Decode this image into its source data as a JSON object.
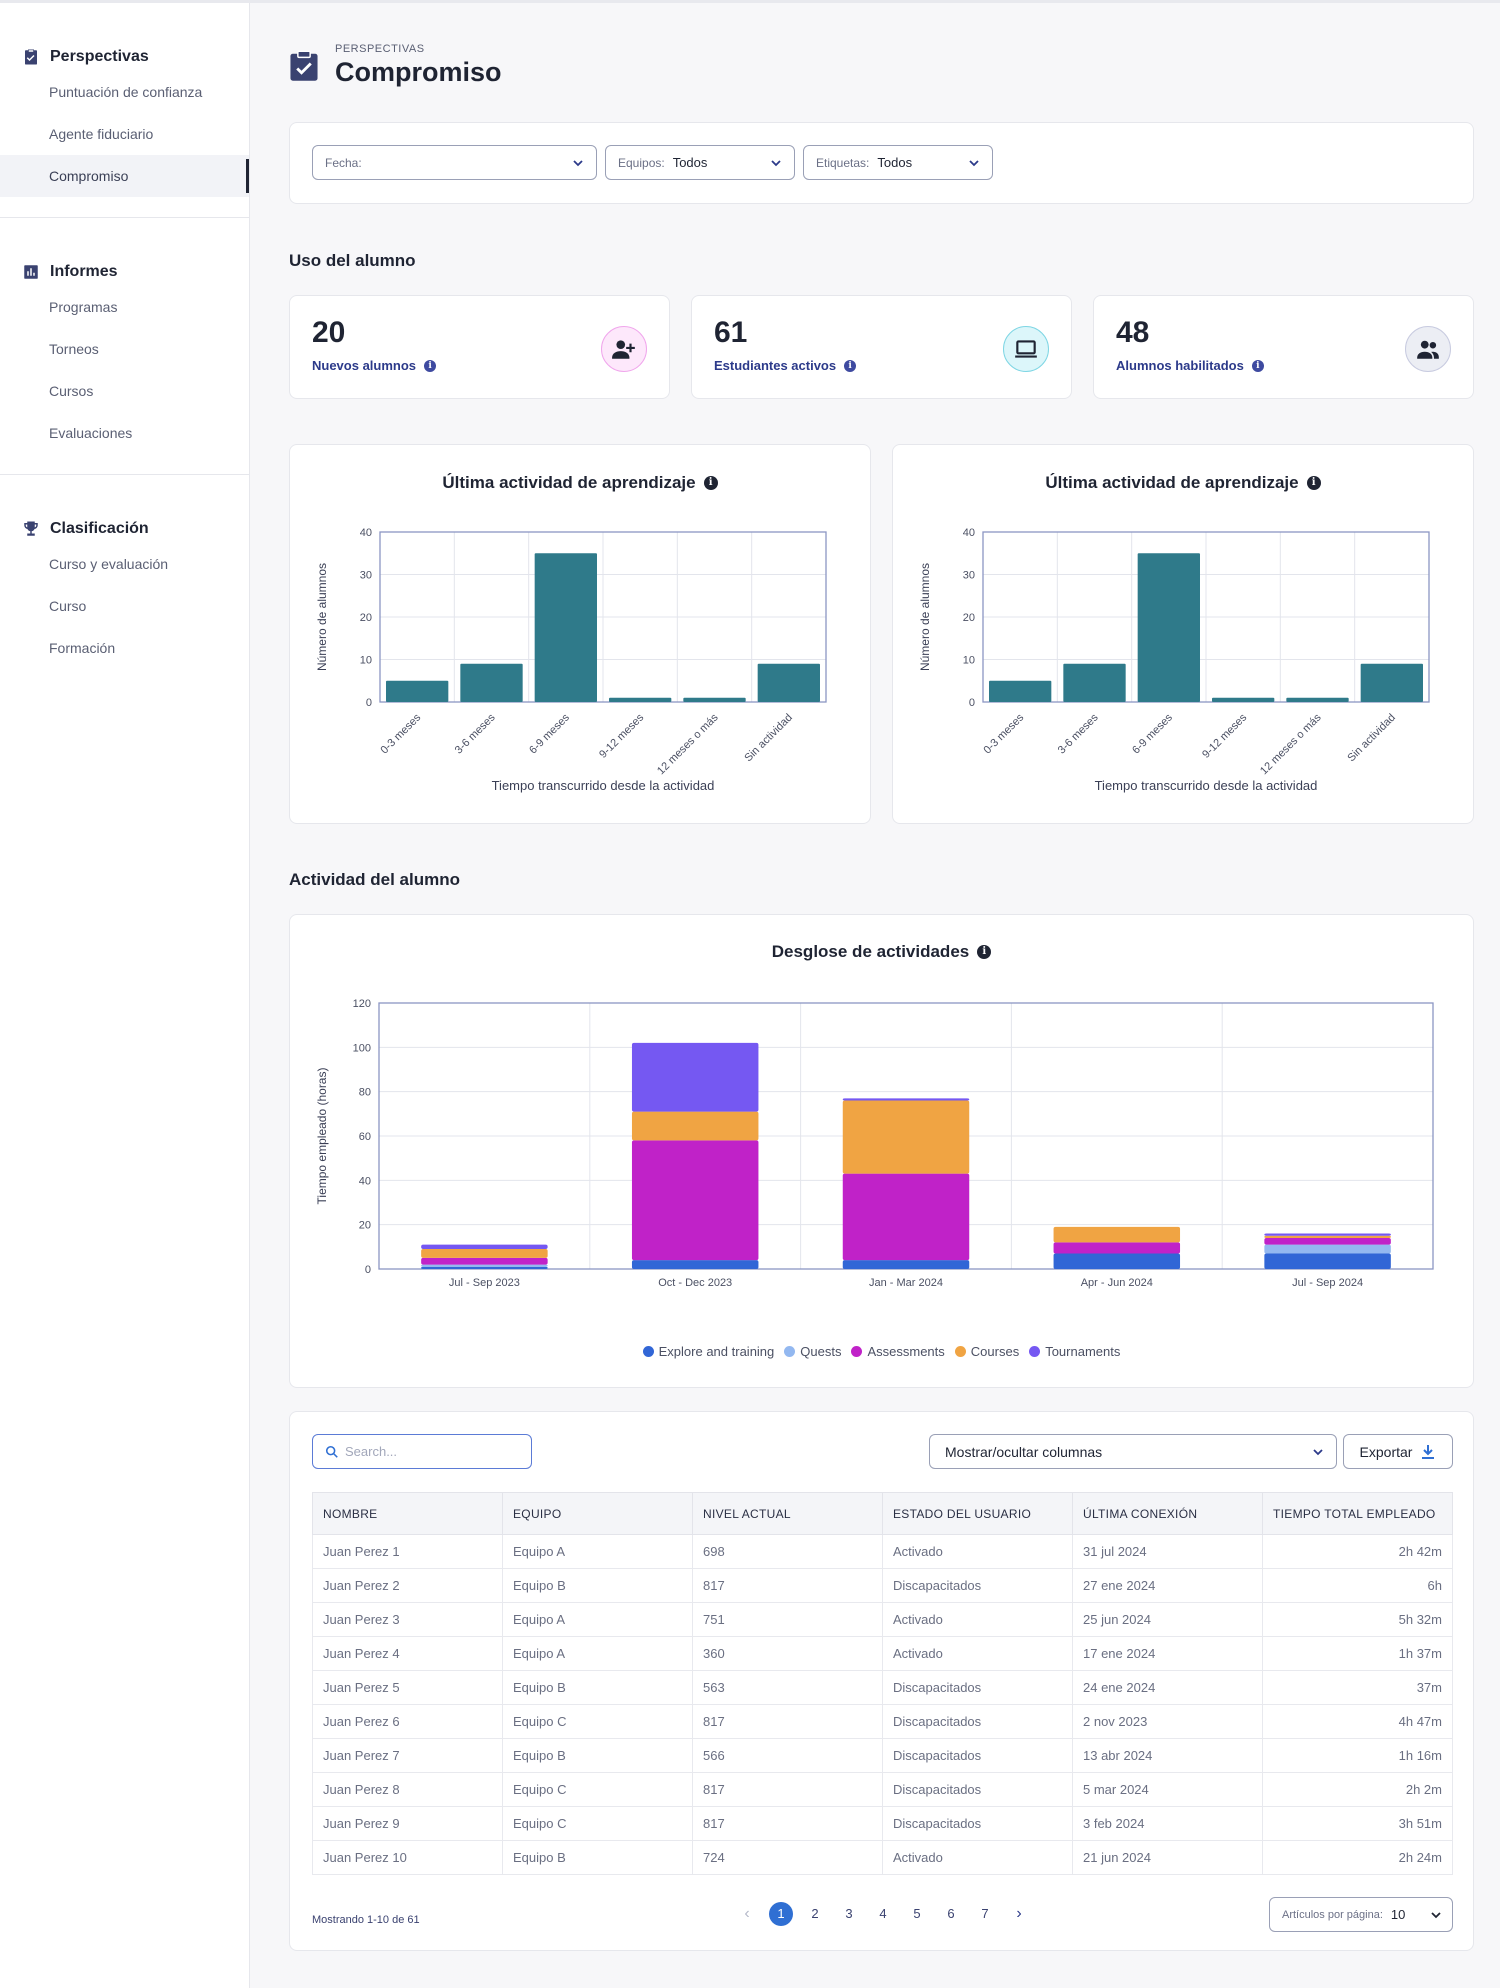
{
  "sidebar": {
    "groups": [
      {
        "title": "Perspectivas",
        "icon": "clipboard-check-icon",
        "items": [
          "Puntuación de confianza",
          "Agente fiduciario",
          "Compromiso"
        ],
        "active": 2
      },
      {
        "title": "Informes",
        "icon": "bar-chart-icon",
        "items": [
          "Programas",
          "Torneos",
          "Cursos",
          "Evaluaciones"
        ]
      },
      {
        "title": "Clasificación",
        "icon": "trophy-icon",
        "items": [
          "Curso y evaluación",
          "Curso",
          "Formación"
        ]
      }
    ]
  },
  "header": {
    "eyebrow": "PERSPECTIVAS",
    "title": "Compromiso"
  },
  "filters": [
    {
      "label": "Fecha:",
      "value": ""
    },
    {
      "label": "Equipos:",
      "value": "Todos"
    },
    {
      "label": "Etiquetas:",
      "value": "Todos"
    }
  ],
  "usage": {
    "title": "Uso del alumno",
    "kpis": [
      {
        "value": "20",
        "label": "Nuevos alumnos",
        "icon": "user-plus-icon",
        "color": "#c026d3",
        "bg": "#fde8fb"
      },
      {
        "value": "61",
        "label": "Estudiantes activos",
        "icon": "laptop-icon",
        "color": "#0e7490",
        "bg": "#dcf6fa"
      },
      {
        "value": "48",
        "label": "Alumnos habilitados",
        "icon": "users-icon",
        "color": "#3a3f55",
        "bg": "#eceef4"
      }
    ]
  },
  "last_activity_charts": [
    {
      "title": "Última actividad de aprendizaje"
    },
    {
      "title": "Última actividad de aprendizaje"
    }
  ],
  "activity": {
    "title": "Actividad del alumno",
    "chart_title": "Desglose de actividades"
  },
  "chart_data": [
    {
      "type": "bar",
      "title": "Última actividad de aprendizaje",
      "categories": [
        "0-3 meses",
        "3-6 meses",
        "6-9 meses",
        "9-12 meses",
        "12 meses o más",
        "Sin actividad"
      ],
      "values": [
        5,
        9,
        35,
        1,
        1,
        9
      ],
      "xlabel": "Tiempo transcurrido desde la actividad",
      "ylabel": "Número de alumnos",
      "ylim": [
        0,
        40
      ],
      "yticks": [
        0,
        10,
        20,
        30,
        40
      ],
      "color": "#2f7a8a",
      "grid": true
    },
    {
      "type": "bar",
      "title": "Última actividad de aprendizaje",
      "categories": [
        "0-3 meses",
        "3-6 meses",
        "6-9 meses",
        "9-12 meses",
        "12 meses o más",
        "Sin actividad"
      ],
      "values": [
        5,
        9,
        35,
        1,
        1,
        9
      ],
      "xlabel": "Tiempo transcurrido desde la actividad",
      "ylabel": "Número de alumnos",
      "ylim": [
        0,
        40
      ],
      "yticks": [
        0,
        10,
        20,
        30,
        40
      ],
      "color": "#2f7a8a",
      "grid": true
    },
    {
      "type": "bar",
      "stacked": true,
      "title": "Desglose de actividades",
      "categories": [
        "Jul - Sep 2023",
        "Oct - Dec 2023",
        "Jan - Mar 2024",
        "Apr - Jun 2024",
        "Jul - Sep 2024"
      ],
      "series": [
        {
          "name": "Explore and training",
          "color": "#3166d6",
          "values": [
            1,
            4,
            4,
            7,
            7
          ]
        },
        {
          "name": "Quests",
          "color": "#93b8f0",
          "values": [
            1,
            0,
            0,
            0,
            4
          ]
        },
        {
          "name": "Assessments",
          "color": "#c022c8",
          "values": [
            3,
            54,
            39,
            5,
            3
          ]
        },
        {
          "name": "Courses",
          "color": "#f0a443",
          "values": [
            4,
            13,
            33,
            7,
            1
          ]
        },
        {
          "name": "Tournaments",
          "color": "#7558f2",
          "values": [
            2,
            31,
            1,
            0,
            1
          ]
        }
      ],
      "ylabel": "Tiempo empleado (horas)",
      "ylim": [
        0,
        120
      ],
      "yticks": [
        0,
        20,
        40,
        60,
        80,
        100,
        120
      ],
      "legend": "bottom",
      "grid": true
    }
  ],
  "table": {
    "search_placeholder": "Search...",
    "columns_toggle": "Mostrar/ocultar columnas",
    "export_label": "Exportar",
    "headers": [
      "NOMBRE",
      "EQUIPO",
      "NIVEL ACTUAL",
      "ESTADO DEL USUARIO",
      "ÚLTIMA CONEXIÓN",
      "TIEMPO TOTAL EMPLEADO"
    ],
    "rows": [
      [
        "Juan Perez 1",
        "Equipo A",
        "698",
        "Activado",
        "31 jul 2024",
        "2h 42m"
      ],
      [
        "Juan Perez 2",
        "Equipo B",
        "817",
        "Discapacitados",
        "27 ene 2024",
        "6h"
      ],
      [
        "Juan Perez 3",
        "Equipo A",
        "751",
        "Activado",
        "25 jun 2024",
        "5h 32m"
      ],
      [
        "Juan Perez 4",
        "Equipo A",
        "360",
        "Activado",
        "17 ene 2024",
        "1h 37m"
      ],
      [
        "Juan Perez 5",
        "Equipo B",
        "563",
        "Discapacitados",
        "24 ene 2024",
        "37m"
      ],
      [
        "Juan Perez 6",
        "Equipo C",
        "817",
        "Discapacitados",
        "2 nov 2023",
        "4h 47m"
      ],
      [
        "Juan Perez 7",
        "Equipo B",
        "566",
        "Discapacitados",
        "13 abr 2024",
        "1h 16m"
      ],
      [
        "Juan Perez 8",
        "Equipo C",
        "817",
        "Discapacitados",
        "5 mar 2024",
        "2h 2m"
      ],
      [
        "Juan Perez 9",
        "Equipo C",
        "817",
        "Discapacitados",
        "3 feb 2024",
        "3h 51m"
      ],
      [
        "Juan Perez 10",
        "Equipo B",
        "724",
        "Activado",
        "21 jun 2024",
        "2h 24m"
      ]
    ],
    "showing": "Mostrando 1-10 de 61",
    "pages": [
      "1",
      "2",
      "3",
      "4",
      "5",
      "6",
      "7"
    ],
    "current_page": "1",
    "per_page_label": "Artículos por página:",
    "per_page_value": "10"
  }
}
